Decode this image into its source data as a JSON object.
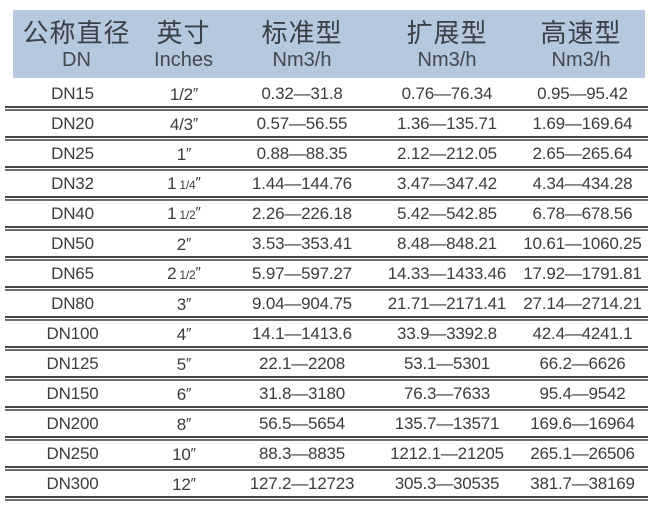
{
  "table": {
    "title_semantic": "flow-rate-specification-table",
    "inch_mark": "″",
    "colors": {
      "header_bg": "#b5c8dd",
      "text": "#3c3c3c",
      "rule_dark": "#474747",
      "rule_light": "#6f6f6f"
    },
    "header": {
      "columns": [
        {
          "zh": "公称直径",
          "sub": "DN"
        },
        {
          "zh": "英寸",
          "sub": "Inches"
        },
        {
          "zh": "标准型",
          "sub": "Nm3/h"
        },
        {
          "zh": "扩展型",
          "sub": "Nm3/h"
        },
        {
          "zh": "高速型",
          "sub": "Nm3/h"
        }
      ]
    },
    "rows": [
      {
        "dn": "DN15",
        "inches_whole": "1/2",
        "inches_frac": "",
        "standard": "0.32—31.8",
        "extended": "0.76—76.34",
        "high_speed": "0.95—95.42"
      },
      {
        "dn": "DN20",
        "inches_whole": "4/3",
        "inches_frac": "",
        "standard": "0.57—56.55",
        "extended": "1.36—135.71",
        "high_speed": "1.69—169.64"
      },
      {
        "dn": "DN25",
        "inches_whole": "1",
        "inches_frac": "",
        "standard": "0.88—88.35",
        "extended": "2.12—212.05",
        "high_speed": "2.65—265.64"
      },
      {
        "dn": "DN32",
        "inches_whole": "1",
        "inches_frac": "1/4",
        "standard": "1.44—144.76",
        "extended": "3.47—347.42",
        "high_speed": "4.34—434.28"
      },
      {
        "dn": "DN40",
        "inches_whole": "1",
        "inches_frac": "1/2",
        "standard": "2.26—226.18",
        "extended": "5.42—542.85",
        "high_speed": "6.78—678.56"
      },
      {
        "dn": "DN50",
        "inches_whole": "2",
        "inches_frac": "",
        "standard": "3.53—353.41",
        "extended": "8.48—848.21",
        "high_speed": "10.61—1060.25"
      },
      {
        "dn": "DN65",
        "inches_whole": "2",
        "inches_frac": "1/2",
        "standard": "5.97—597.27",
        "extended": "14.33—1433.46",
        "high_speed": "17.92—1791.81"
      },
      {
        "dn": "DN80",
        "inches_whole": "3",
        "inches_frac": "",
        "standard": "9.04—904.75",
        "extended": "21.71—2171.41",
        "high_speed": "27.14—2714.21"
      },
      {
        "dn": "DN100",
        "inches_whole": "4",
        "inches_frac": "",
        "standard": "14.1—1413.6",
        "extended": "33.9—3392.8",
        "high_speed": "42.4—4241.1"
      },
      {
        "dn": "DN125",
        "inches_whole": "5",
        "inches_frac": "",
        "standard": "22.1—2208",
        "extended": "53.1—5301",
        "high_speed": "66.2—6626"
      },
      {
        "dn": "DN150",
        "inches_whole": "6",
        "inches_frac": "",
        "standard": "31.8—3180",
        "extended": "76.3—7633",
        "high_speed": "95.4—9542"
      },
      {
        "dn": "DN200",
        "inches_whole": "8",
        "inches_frac": "",
        "standard": "56.5—5654",
        "extended": "135.7—13571",
        "high_speed": "169.6—16964"
      },
      {
        "dn": "DN250",
        "inches_whole": "10",
        "inches_frac": "",
        "standard": "88.3—8835",
        "extended": "1212.1—21205",
        "high_speed": "265.1—26506"
      },
      {
        "dn": "DN300",
        "inches_whole": "12",
        "inches_frac": "",
        "standard": "127.2—12723",
        "extended": "305.3—30535",
        "high_speed": "381.7—38169"
      }
    ]
  }
}
